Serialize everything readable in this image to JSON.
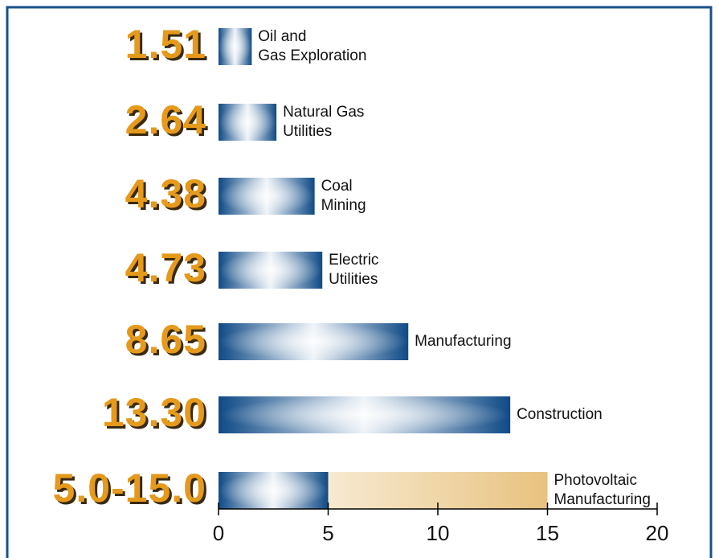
{
  "chart_data": {
    "type": "bar",
    "categories": [
      [
        "Oil and",
        "Gas Exploration"
      ],
      [
        "Natural Gas",
        "Utilities"
      ],
      [
        "Coal",
        "Mining"
      ],
      [
        "Electric",
        "Utilities"
      ],
      [
        "Manufacturing"
      ],
      [
        "Construction"
      ],
      [
        "Photovoltaic",
        "Manufacturing"
      ]
    ],
    "values": [
      1.51,
      2.64,
      4.38,
      4.73,
      8.65,
      13.3,
      5.0
    ],
    "range_ends": [
      null,
      null,
      null,
      null,
      null,
      null,
      15.0
    ],
    "value_labels": [
      "1.51",
      "2.64",
      "4.38",
      "4.73",
      "8.65",
      "13.30",
      "5.0-15.0"
    ],
    "xlim": [
      0,
      20
    ],
    "xticks": [
      0,
      5,
      10,
      15,
      20
    ],
    "color": "#124a86",
    "range_color": "#e8c27f",
    "label_color": "#e59a1c"
  }
}
